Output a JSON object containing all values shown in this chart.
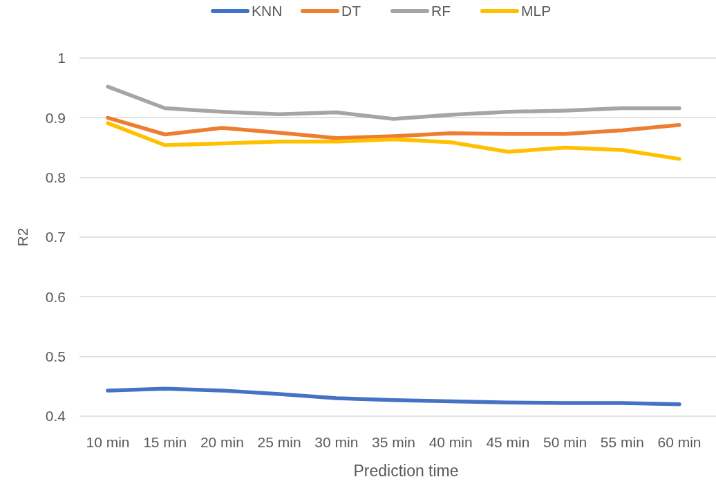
{
  "chart_data": {
    "type": "line",
    "xlabel": "Prediction time",
    "ylabel": "R2",
    "categories": [
      "10 min",
      "15 min",
      "20 min",
      "25 min",
      "30 min",
      "35 min",
      "40 min",
      "45 min",
      "50 min",
      "55 min",
      "60 min"
    ],
    "series": [
      {
        "name": "KNN",
        "color": "#4472c4",
        "values": [
          0.443,
          0.446,
          0.443,
          0.437,
          0.43,
          0.427,
          0.425,
          0.423,
          0.422,
          0.422,
          0.42
        ]
      },
      {
        "name": "DT",
        "color": "#ed7d31",
        "values": [
          0.9,
          0.872,
          0.883,
          0.875,
          0.866,
          0.869,
          0.874,
          0.873,
          0.873,
          0.879,
          0.888
        ]
      },
      {
        "name": "RF",
        "color": "#a5a5a5",
        "values": [
          0.952,
          0.916,
          0.91,
          0.906,
          0.909,
          0.898,
          0.905,
          0.91,
          0.912,
          0.916,
          0.916
        ]
      },
      {
        "name": "MLP",
        "color": "#ffc000",
        "values": [
          0.891,
          0.854,
          0.857,
          0.86,
          0.86,
          0.864,
          0.859,
          0.843,
          0.85,
          0.846,
          0.831
        ]
      }
    ],
    "ylim": [
      0.4,
      1
    ],
    "yticks": [
      0.4,
      0.5,
      0.6,
      0.7,
      0.8,
      0.9,
      1
    ],
    "grid": "y",
    "legend": "top",
    "line_style": "solid",
    "marker": "none"
  }
}
